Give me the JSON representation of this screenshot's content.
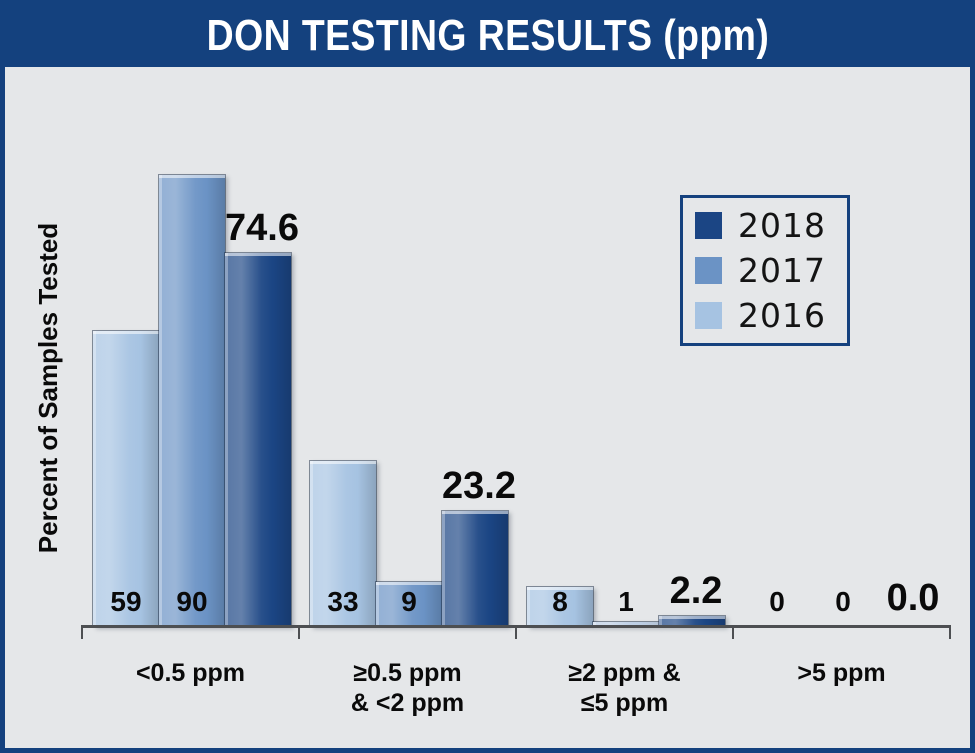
{
  "colors": {
    "navy_accent": "#14417e",
    "chart_background": "#e5e7e9",
    "axis": "#4d4f52",
    "label_text": "#0a0a0a",
    "title_text": "#ffffff"
  },
  "legend": {
    "position": "top-right",
    "items": [
      {
        "label": "2018",
        "color": "#1b4584"
      },
      {
        "label": "2017",
        "color": "#6b93c5"
      },
      {
        "label": "2016",
        "color": "#a6c3e2"
      }
    ]
  },
  "chart_data": {
    "type": "bar",
    "title": "DON TESTING RESULTS (ppm)",
    "xlabel": "",
    "ylabel": "Percent of Samples Tested",
    "ylim": [
      0,
      100
    ],
    "grid": false,
    "y_axis_ticks_visible": false,
    "legend_position": "top-right",
    "categories": [
      "<0.5 ppm",
      "≥0.5 ppm\n& <2 ppm",
      "≥2 ppm &\n≤5 ppm",
      ">5 ppm"
    ],
    "series": [
      {
        "name": "2016",
        "color": "#a6c3e2",
        "values": [
          59,
          33,
          8,
          0
        ],
        "labels": [
          "59",
          "33",
          "8",
          "0"
        ],
        "label_style": "small"
      },
      {
        "name": "2017",
        "color": "#6b93c5",
        "values": [
          90,
          9,
          1,
          0
        ],
        "labels": [
          "90",
          "9",
          "1",
          "0"
        ],
        "label_style": "small"
      },
      {
        "name": "2018",
        "color": "#1b4584",
        "values": [
          74.6,
          23.2,
          2.2,
          0
        ],
        "labels": [
          "74.6",
          "23.2",
          "2.2",
          "0.0"
        ],
        "label_style": "large"
      }
    ]
  }
}
